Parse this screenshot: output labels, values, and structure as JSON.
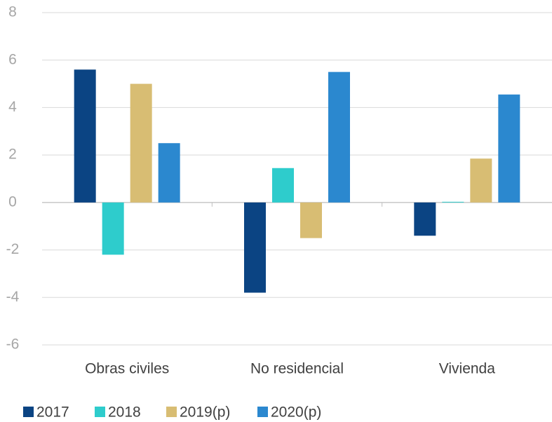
{
  "chart_data": {
    "type": "bar",
    "categories": [
      "Obras civiles",
      "No residencial",
      "Vivienda"
    ],
    "series": [
      {
        "name": "2017",
        "color": "#0b4483",
        "values": [
          5.6,
          -3.8,
          -1.4
        ]
      },
      {
        "name": "2018",
        "color": "#2ecccc",
        "values": [
          -2.2,
          1.45,
          0.03
        ]
      },
      {
        "name": "2019(p)",
        "color": "#d8bd73",
        "values": [
          5.0,
          -1.5,
          1.85
        ]
      },
      {
        "name": "2020(p)",
        "color": "#2b88cf",
        "values": [
          2.5,
          5.5,
          4.55
        ]
      }
    ],
    "ylim": [
      -6,
      8
    ],
    "yticks": [
      -6,
      -4,
      -2,
      0,
      2,
      4,
      6,
      8
    ],
    "grid": true,
    "legend": "bottom"
  }
}
